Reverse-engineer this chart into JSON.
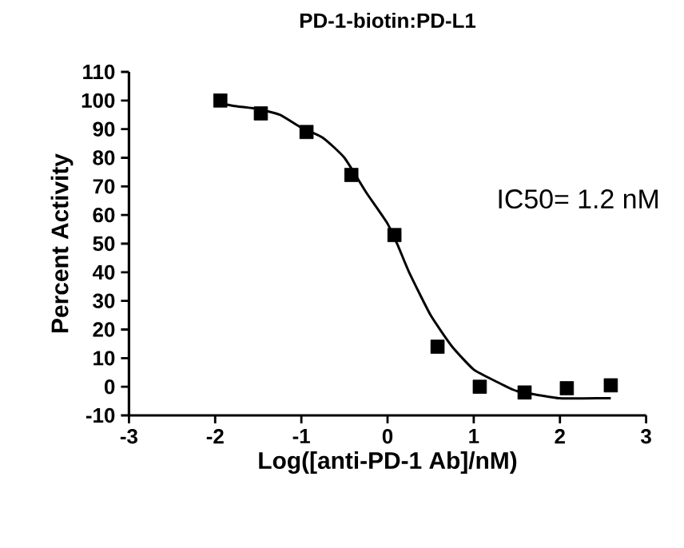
{
  "chart_data": {
    "type": "scatter",
    "title": "PD-1-biotin:PD-L1",
    "xlabel": "Log([anti-PD-1 Ab]/nM)",
    "ylabel": "Percent Activity",
    "annotations": [
      "IC50= 1.2 nM"
    ],
    "series": [
      {
        "color": "#000000",
        "marker": "square",
        "x": [
          -1.94,
          -1.47,
          -0.94,
          -0.42,
          0.08,
          0.58,
          1.07,
          1.59,
          2.08,
          2.59
        ],
        "values": [
          100,
          95.5,
          89,
          74,
          53,
          14,
          0,
          -2,
          -0.5,
          0.5
        ]
      },
      {
        "type": "line",
        "color": "#000000",
        "line_style": "solid",
        "x": [
          -1.94,
          -1.75,
          -1.5,
          -1.25,
          -1,
          -0.75,
          -0.5,
          -0.25,
          0,
          0.125,
          0.25,
          0.5,
          0.75,
          1,
          1.25,
          1.5,
          2,
          2.5,
          2.59
        ],
        "values": [
          99,
          98,
          97,
          95,
          90.5,
          87,
          80,
          68,
          57,
          49,
          40,
          25,
          14,
          6,
          2,
          -1.5,
          -4,
          -4,
          -4
        ]
      }
    ],
    "xlim": [
      -3,
      3
    ],
    "ylim": [
      -10,
      110
    ],
    "xticks": [
      -3,
      -2,
      -1,
      0,
      1,
      2,
      3
    ],
    "yticks": [
      -10,
      0,
      10,
      20,
      30,
      40,
      50,
      60,
      70,
      80,
      90,
      100,
      110
    ],
    "grid": false,
    "legend": false
  }
}
